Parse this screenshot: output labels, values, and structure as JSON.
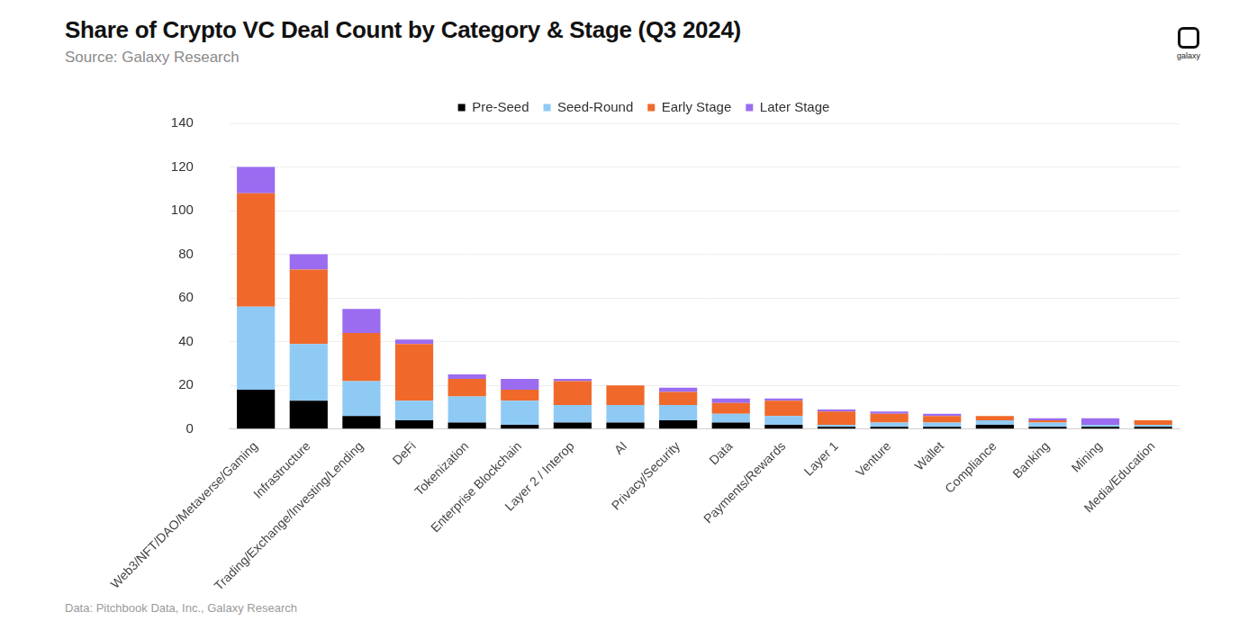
{
  "chart_data": {
    "type": "bar",
    "title": "Share of Crypto VC Deal Count by Category & Stage (Q3 2024)",
    "subtitle": "Source: Galaxy Research",
    "source": "Data: Pitchbook Data, Inc., Galaxy Research",
    "logo": "galaxy",
    "categories": [
      "Web3/NFT/DAO/Metaverse/Gaming",
      "Infrastructure",
      "Trading/Exchange/Investing/Lending",
      "DeFi",
      "Tokenization",
      "Enterprise Blockchain",
      "Layer 2 / Interop",
      "AI",
      "Privacy/Security",
      "Data",
      "Payments/Rewards",
      "Layer 1",
      "Venture",
      "Wallet",
      "Compliance",
      "Banking",
      "Mining",
      "Media/Education"
    ],
    "series": [
      {
        "name": "Pre-Seed",
        "color": "#000000",
        "values": [
          18,
          13,
          6,
          4,
          3,
          2,
          3,
          3,
          4,
          3,
          2,
          1,
          1,
          1,
          2,
          1,
          1,
          1
        ]
      },
      {
        "name": "Seed-Round",
        "color": "#8fcaf5",
        "values": [
          38,
          26,
          16,
          9,
          12,
          11,
          8,
          8,
          7,
          4,
          4,
          1,
          2,
          2,
          2,
          2,
          1,
          1
        ]
      },
      {
        "name": "Early Stage",
        "color": "#f0692a",
        "values": [
          52,
          34,
          22,
          26,
          8,
          5,
          11,
          9,
          6,
          5,
          7,
          6,
          4,
          3,
          2,
          1,
          0,
          2
        ]
      },
      {
        "name": "Later Stage",
        "color": "#9b6cf0",
        "values": [
          12,
          7,
          11,
          2,
          2,
          5,
          1,
          0,
          2,
          2,
          1,
          1,
          1,
          1,
          0,
          1,
          3,
          0
        ]
      }
    ],
    "stacked": true,
    "ylim": [
      0,
      140
    ],
    "yticks": [
      0,
      20,
      40,
      60,
      80,
      100,
      120,
      140
    ],
    "grid": true,
    "legend": "top"
  }
}
